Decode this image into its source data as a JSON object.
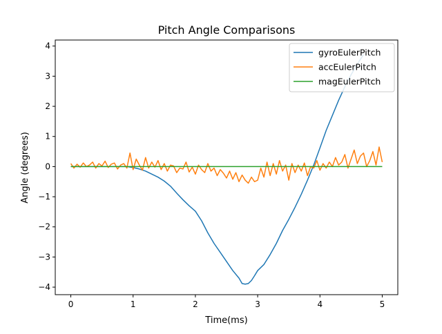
{
  "chart_data": {
    "type": "line",
    "title": "Pitch Angle Comparisons",
    "xlabel": "Time(ms)",
    "ylabel": "Angle (degrees)",
    "xlim": [
      -0.25,
      5.25
    ],
    "ylim": [
      -4.25,
      4.2
    ],
    "xticks": [
      0,
      1,
      2,
      3,
      4,
      5
    ],
    "xtick_labels": [
      "0",
      "1",
      "2",
      "3",
      "4",
      "5"
    ],
    "yticks": [
      -4,
      -3,
      -2,
      -1,
      0,
      1,
      2,
      3,
      4
    ],
    "ytick_labels": [
      "−4",
      "−3",
      "−2",
      "−1",
      "0",
      "1",
      "2",
      "3",
      "4"
    ],
    "grid": false,
    "legend_position": "top-right",
    "series": [
      {
        "name": "gyroEulerPitch",
        "color": "#1f77b4",
        "x": [
          0,
          0.3,
          0.6,
          0.9,
          1.0,
          1.1,
          1.2,
          1.3,
          1.4,
          1.5,
          1.6,
          1.7,
          1.8,
          1.9,
          2.0,
          2.1,
          2.2,
          2.3,
          2.4,
          2.5,
          2.6,
          2.7,
          2.75,
          2.8,
          2.85,
          2.9,
          2.95,
          3.0,
          3.1,
          3.2,
          3.3,
          3.4,
          3.5,
          3.6,
          3.7,
          3.8,
          3.9,
          4.0,
          4.1,
          4.2,
          4.3,
          4.4,
          4.5,
          4.6,
          4.7
        ],
        "y": [
          0,
          0.0,
          0.0,
          0.0,
          -0.03,
          -0.08,
          -0.15,
          -0.25,
          -0.35,
          -0.48,
          -0.65,
          -0.88,
          -1.1,
          -1.3,
          -1.48,
          -1.8,
          -2.2,
          -2.55,
          -2.85,
          -3.15,
          -3.45,
          -3.7,
          -3.88,
          -3.9,
          -3.88,
          -3.78,
          -3.62,
          -3.45,
          -3.25,
          -2.92,
          -2.55,
          -2.12,
          -1.75,
          -1.35,
          -0.92,
          -0.45,
          0.05,
          0.62,
          1.2,
          1.7,
          2.2,
          2.65,
          3.05,
          3.4,
          3.72
        ]
      },
      {
        "name": "accEulerPitch",
        "color": "#ff7f0e",
        "x": [
          0,
          0.05,
          0.1,
          0.15,
          0.2,
          0.25,
          0.3,
          0.35,
          0.4,
          0.45,
          0.5,
          0.55,
          0.6,
          0.65,
          0.7,
          0.75,
          0.8,
          0.85,
          0.9,
          0.95,
          1.0,
          1.05,
          1.1,
          1.15,
          1.2,
          1.25,
          1.3,
          1.35,
          1.4,
          1.45,
          1.5,
          1.55,
          1.6,
          1.65,
          1.7,
          1.75,
          1.8,
          1.85,
          1.9,
          1.95,
          2.0,
          2.05,
          2.1,
          2.15,
          2.2,
          2.25,
          2.3,
          2.35,
          2.4,
          2.45,
          2.5,
          2.55,
          2.6,
          2.65,
          2.7,
          2.75,
          2.8,
          2.85,
          2.9,
          2.95,
          3.0,
          3.05,
          3.1,
          3.15,
          3.2,
          3.25,
          3.3,
          3.35,
          3.4,
          3.45,
          3.5,
          3.55,
          3.6,
          3.65,
          3.7,
          3.75,
          3.8,
          3.85,
          3.9,
          3.95,
          4.0,
          4.05,
          4.1,
          4.15,
          4.2,
          4.25,
          4.3,
          4.35,
          4.4,
          4.45,
          4.5,
          4.55,
          4.6,
          4.65,
          4.7,
          4.75,
          4.8,
          4.85,
          4.9,
          4.95,
          5.0
        ],
        "y": [
          0.1,
          -0.05,
          0.08,
          -0.02,
          0.12,
          0.0,
          0.05,
          0.15,
          -0.05,
          0.1,
          0.02,
          0.18,
          -0.03,
          0.08,
          0.12,
          -0.08,
          0.05,
          0.1,
          -0.05,
          0.45,
          -0.1,
          0.25,
          0.05,
          -0.12,
          0.3,
          -0.05,
          0.15,
          -0.02,
          0.2,
          -0.1,
          0.1,
          -0.15,
          0.05,
          0.02,
          -0.2,
          -0.05,
          -0.08,
          0.15,
          -0.18,
          -0.02,
          -0.25,
          0.05,
          -0.1,
          -0.2,
          0.1,
          -0.15,
          -0.05,
          -0.3,
          -0.1,
          -0.22,
          -0.38,
          -0.15,
          -0.42,
          -0.2,
          -0.5,
          -0.28,
          -0.45,
          -0.55,
          -0.35,
          -0.5,
          -0.45,
          -0.05,
          -0.35,
          0.15,
          -0.3,
          0.1,
          -0.25,
          0.2,
          -0.15,
          0.05,
          -0.45,
          0.1,
          -0.2,
          0.05,
          -0.15,
          0.12,
          -0.3,
          0.0,
          -0.05,
          0.2,
          -0.12,
          0.1,
          -0.05,
          0.15,
          0.0,
          0.3,
          0.05,
          0.15,
          0.4,
          -0.05,
          0.25,
          0.55,
          0.1,
          0.35,
          0.45,
          0.0,
          0.2,
          0.5,
          0.05,
          0.65,
          0.15
        ]
      },
      {
        "name": "magEulerPitch",
        "color": "#2ca02c",
        "x": [
          0,
          5
        ],
        "y": [
          0,
          0
        ]
      }
    ]
  }
}
